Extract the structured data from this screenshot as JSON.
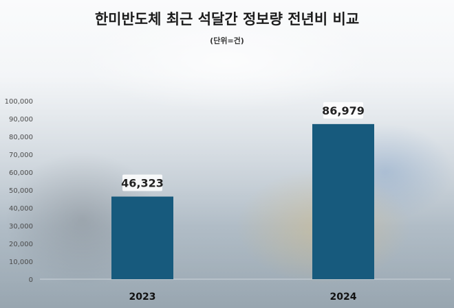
{
  "chart_data": {
    "type": "bar",
    "title": "한미반도체 최근 석달간 정보량 전년비 비교",
    "subtitle": "(단위=건)",
    "categories": [
      "2023",
      "2024"
    ],
    "values": [
      46323,
      86979
    ],
    "value_labels": [
      "46,323",
      "86,979"
    ],
    "ylim": [
      0,
      100000
    ],
    "y_ticks": [
      0,
      10000,
      20000,
      30000,
      40000,
      50000,
      60000,
      70000,
      80000,
      90000,
      100000
    ],
    "y_tick_labels": [
      "0",
      "10,000",
      "20,000",
      "30,000",
      "40,000",
      "50,000",
      "60,000",
      "70,000",
      "80,000",
      "90,000",
      "100,000"
    ],
    "xlabel": "",
    "ylabel": "",
    "grid": false,
    "bar_color": "#175a7d"
  }
}
